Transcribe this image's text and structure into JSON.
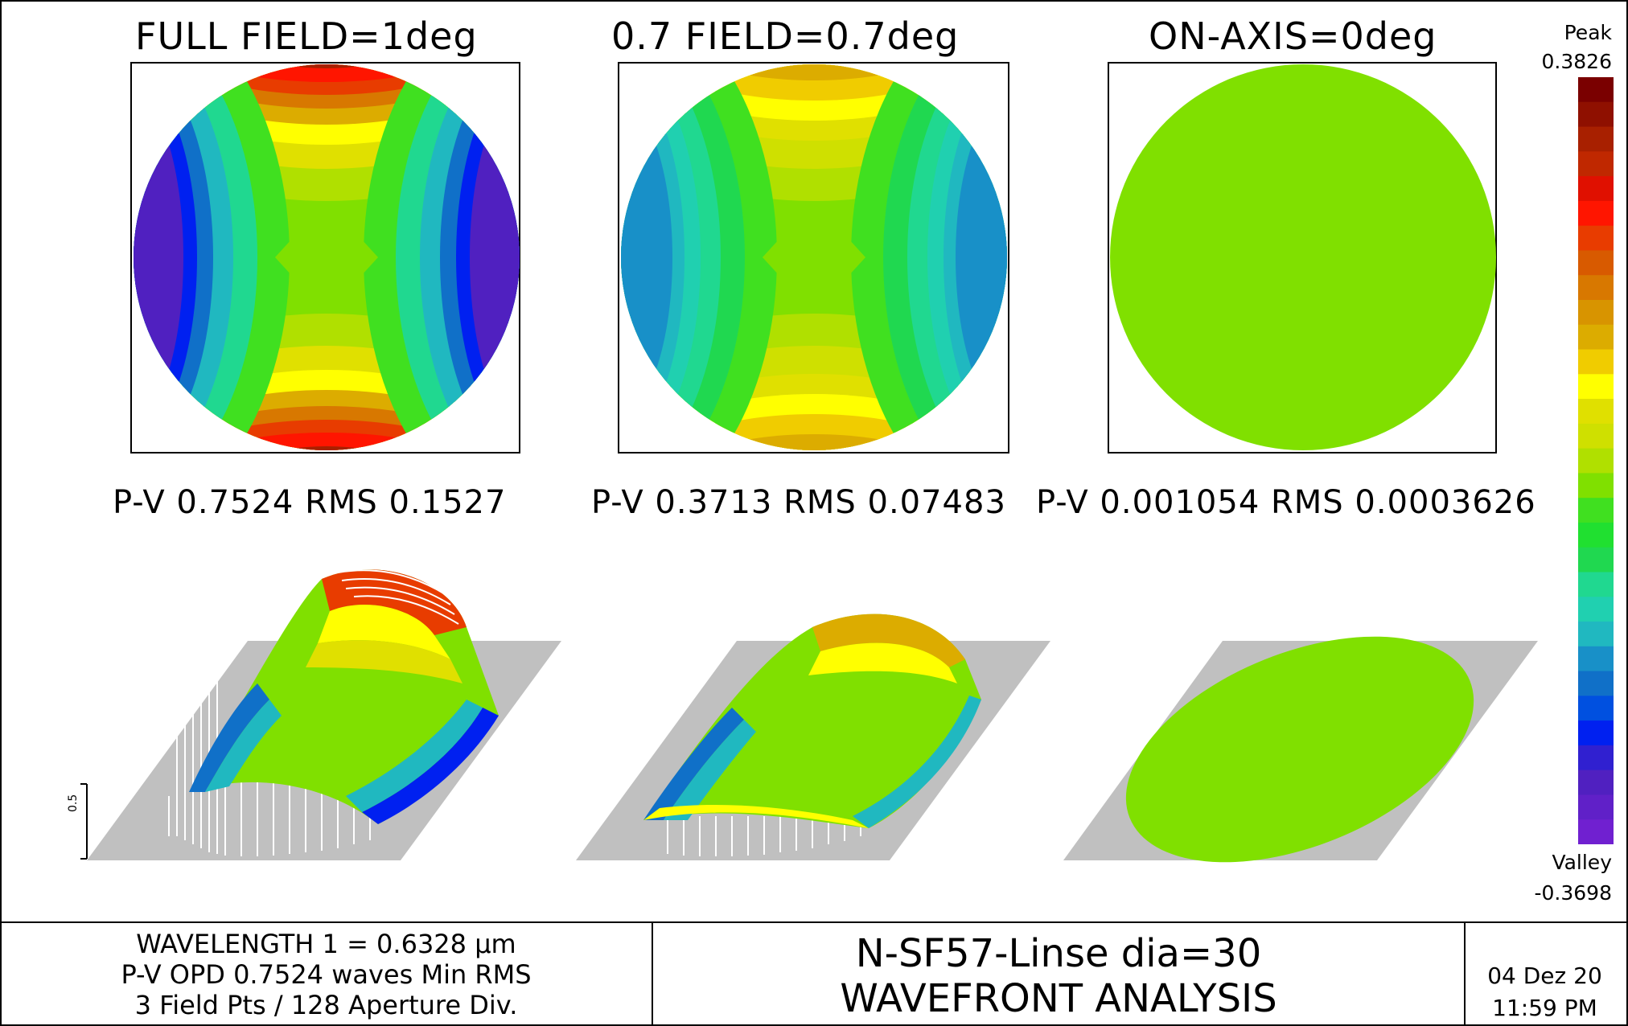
{
  "plots": [
    {
      "title": "FULL FIELD=1deg",
      "stats": "P-V 0.7524 RMS 0.1527"
    },
    {
      "title": "0.7 FIELD=0.7deg",
      "stats": "P-V 0.3713 RMS 0.07483"
    },
    {
      "title": "ON-AXIS=0deg",
      "stats": "P-V 0.001054 RMS 0.0003626"
    }
  ],
  "colorbar": {
    "peak_label": "Peak",
    "peak_value": "0.3826",
    "valley_label": "Valley",
    "valley_value": "-0.3698",
    "colors": [
      "#7a0000",
      "#8f1000",
      "#a82000",
      "#c02800",
      "#e01000",
      "#ff1500",
      "#e83c00",
      "#d85a00",
      "#d87800",
      "#d89400",
      "#dcac00",
      "#f0cc00",
      "#ffff00",
      "#e0e000",
      "#cfe000",
      "#b0e000",
      "#80e000",
      "#40e020",
      "#20e030",
      "#20d850",
      "#20d890",
      "#20d0b0",
      "#20b8c0",
      "#1890c8",
      "#1070c8",
      "#0050e0",
      "#0020f0",
      "#3020d0",
      "#5020c0",
      "#6020c8",
      "#7020d0"
    ]
  },
  "scale_tick": "0.5",
  "footer": {
    "left_lines": [
      "WAVELENGTH 1 = 0.6328 μm",
      "P-V OPD 0.7524 waves Min RMS",
      "3 Field Pts / 128 Aperture Div."
    ],
    "title_line1": "N-SF57-Linse dia=30",
    "title_line2": "WAVEFRONT ANALYSIS",
    "date": "04 Dez 20",
    "time": "11:59 PM"
  }
}
